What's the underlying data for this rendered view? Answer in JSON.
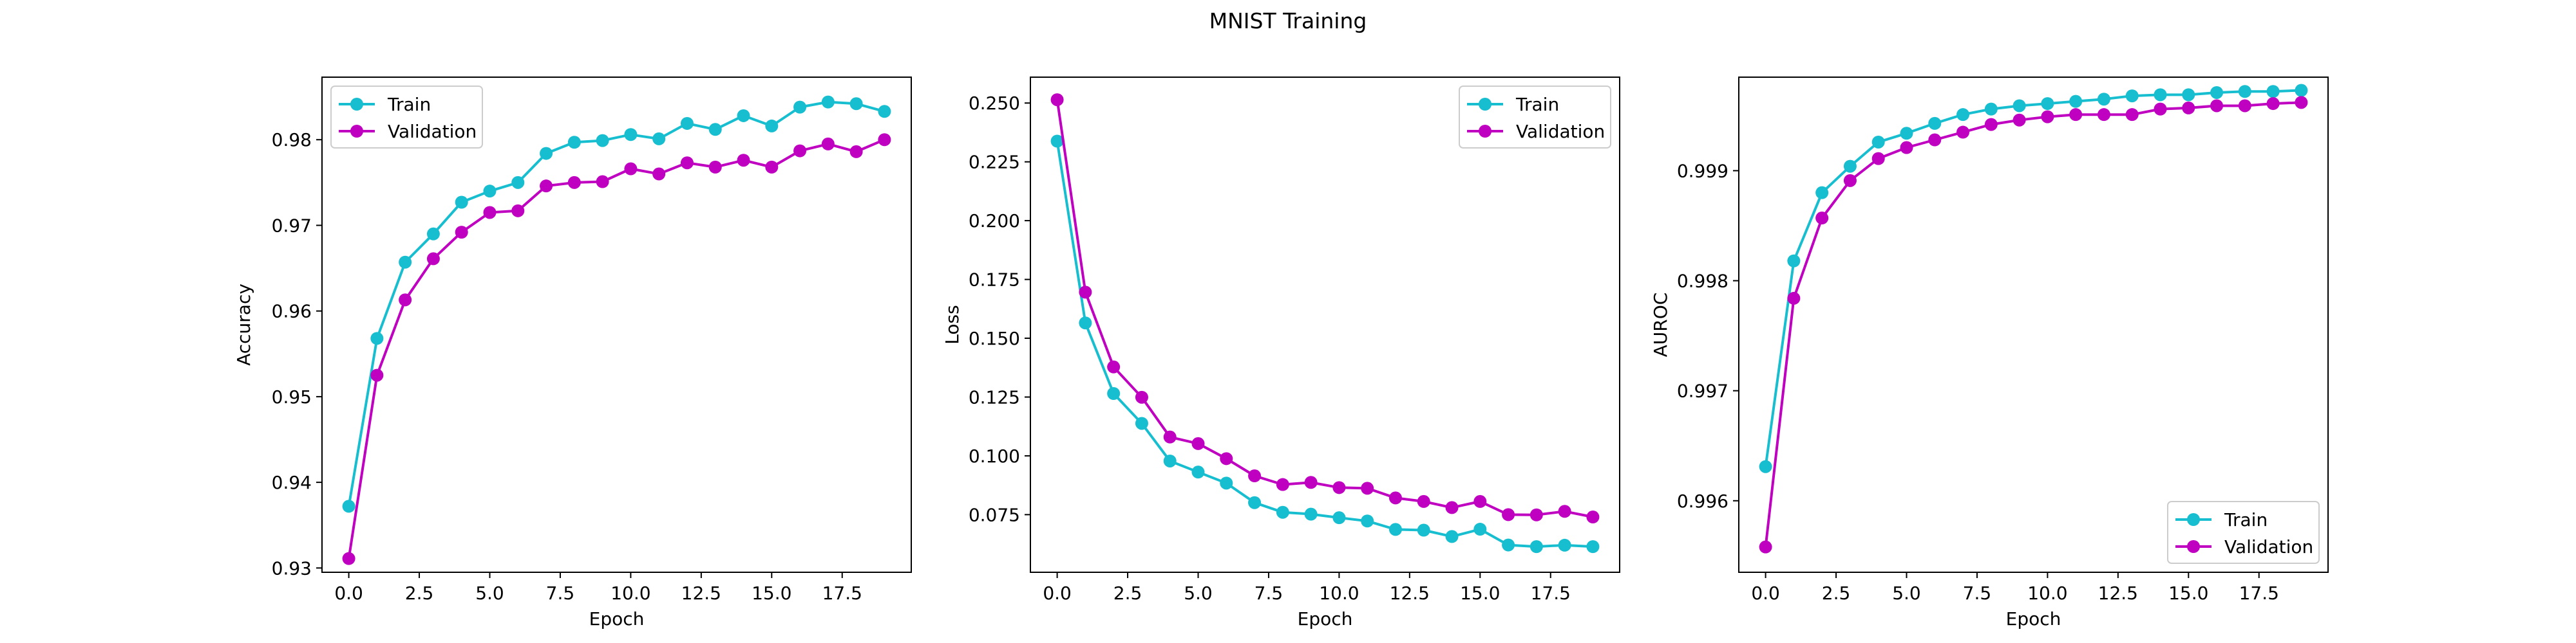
{
  "title": "MNIST Training",
  "colors": {
    "train": "#17becf",
    "validation": "#c000c0"
  },
  "chart_data": [
    {
      "type": "line",
      "x": [
        0,
        1,
        2,
        3,
        4,
        5,
        6,
        7,
        8,
        9,
        10,
        11,
        12,
        13,
        14,
        15,
        16,
        17,
        18,
        19
      ],
      "xlabel": "Epoch",
      "ylabel": "Accuracy",
      "xlim": [
        -0.95,
        19.95
      ],
      "ylim": [
        0.9295,
        0.9873
      ],
      "xticks": [
        0.0,
        2.5,
        5.0,
        7.5,
        10.0,
        12.5,
        15.0,
        17.5
      ],
      "xtick_labels": [
        "0.0",
        "2.5",
        "5.0",
        "7.5",
        "10.0",
        "12.5",
        "15.0",
        "17.5"
      ],
      "yticks": [
        0.93,
        0.94,
        0.95,
        0.96,
        0.97,
        0.98
      ],
      "ytick_labels": [
        "0.93",
        "0.94",
        "0.95",
        "0.96",
        "0.97",
        "0.98"
      ],
      "legend_position": "top-left",
      "series": [
        {
          "name": "Train",
          "color": "#17becf",
          "values": [
            0.9372,
            0.9568,
            0.9657,
            0.969,
            0.9727,
            0.974,
            0.975,
            0.9784,
            0.9797,
            0.9799,
            0.9806,
            0.9801,
            0.9819,
            0.9812,
            0.9828,
            0.9816,
            0.9838,
            0.9844,
            0.9842,
            0.9833
          ]
        },
        {
          "name": "Validation",
          "color": "#c000c0",
          "values": [
            0.9311,
            0.9525,
            0.9613,
            0.9661,
            0.9692,
            0.9715,
            0.9717,
            0.9746,
            0.975,
            0.9751,
            0.9766,
            0.976,
            0.9773,
            0.9768,
            0.9776,
            0.9768,
            0.9787,
            0.9795,
            0.9786,
            0.98
          ]
        }
      ]
    },
    {
      "type": "line",
      "x": [
        0,
        1,
        2,
        3,
        4,
        5,
        6,
        7,
        8,
        9,
        10,
        11,
        12,
        13,
        14,
        15,
        16,
        17,
        18,
        19
      ],
      "xlabel": "Epoch",
      "ylabel": "Loss",
      "xlim": [
        -0.95,
        19.95
      ],
      "ylim": [
        0.0505,
        0.261
      ],
      "xticks": [
        0.0,
        2.5,
        5.0,
        7.5,
        10.0,
        12.5,
        15.0,
        17.5
      ],
      "xtick_labels": [
        "0.0",
        "2.5",
        "5.0",
        "7.5",
        "10.0",
        "12.5",
        "15.0",
        "17.5"
      ],
      "yticks": [
        0.075,
        0.1,
        0.125,
        0.15,
        0.175,
        0.2,
        0.225,
        0.25
      ],
      "ytick_labels": [
        "0.075",
        "0.100",
        "0.125",
        "0.150",
        "0.175",
        "0.200",
        "0.225",
        "0.250"
      ],
      "legend_position": "top-right",
      "series": [
        {
          "name": "Train",
          "color": "#17becf",
          "values": [
            0.2338,
            0.1565,
            0.1265,
            0.1138,
            0.0978,
            0.0931,
            0.0884,
            0.0801,
            0.076,
            0.0752,
            0.0737,
            0.0723,
            0.0687,
            0.0684,
            0.0657,
            0.0688,
            0.0621,
            0.0614,
            0.062,
            0.0614
          ]
        },
        {
          "name": "Validation",
          "color": "#c000c0",
          "values": [
            0.2514,
            0.1696,
            0.1378,
            0.1249,
            0.108,
            0.1052,
            0.0988,
            0.0915,
            0.0878,
            0.0887,
            0.0865,
            0.0862,
            0.0821,
            0.0806,
            0.078,
            0.0806,
            0.075,
            0.0749,
            0.0764,
            0.074
          ]
        }
      ]
    },
    {
      "type": "line",
      "x": [
        0,
        1,
        2,
        3,
        4,
        5,
        6,
        7,
        8,
        9,
        10,
        11,
        12,
        13,
        14,
        15,
        16,
        17,
        18,
        19
      ],
      "xlabel": "Epoch",
      "ylabel": "AUROC",
      "xlim": [
        -0.95,
        19.95
      ],
      "ylim": [
        0.99535,
        0.99985
      ],
      "xticks": [
        0.0,
        2.5,
        5.0,
        7.5,
        10.0,
        12.5,
        15.0,
        17.5
      ],
      "xtick_labels": [
        "0.0",
        "2.5",
        "5.0",
        "7.5",
        "10.0",
        "12.5",
        "15.0",
        "17.5"
      ],
      "yticks": [
        0.996,
        0.997,
        0.998,
        0.999
      ],
      "ytick_labels": [
        "0.996",
        "0.997",
        "0.998",
        "0.999"
      ],
      "legend_position": "bottom-right",
      "series": [
        {
          "name": "Train",
          "color": "#17becf",
          "values": [
            0.99631,
            0.99818,
            0.9988,
            0.99904,
            0.99926,
            0.99934,
            0.99943,
            0.99951,
            0.99956,
            0.99959,
            0.99961,
            0.99963,
            0.99965,
            0.99968,
            0.99969,
            0.99969,
            0.99971,
            0.99972,
            0.99972,
            0.99973
          ]
        },
        {
          "name": "Validation",
          "color": "#c000c0",
          "values": [
            0.99558,
            0.99784,
            0.99857,
            0.99891,
            0.99911,
            0.99921,
            0.99928,
            0.99935,
            0.99942,
            0.99946,
            0.99949,
            0.99951,
            0.99951,
            0.99951,
            0.99956,
            0.99957,
            0.99959,
            0.99959,
            0.99961,
            0.99962
          ]
        }
      ]
    }
  ]
}
